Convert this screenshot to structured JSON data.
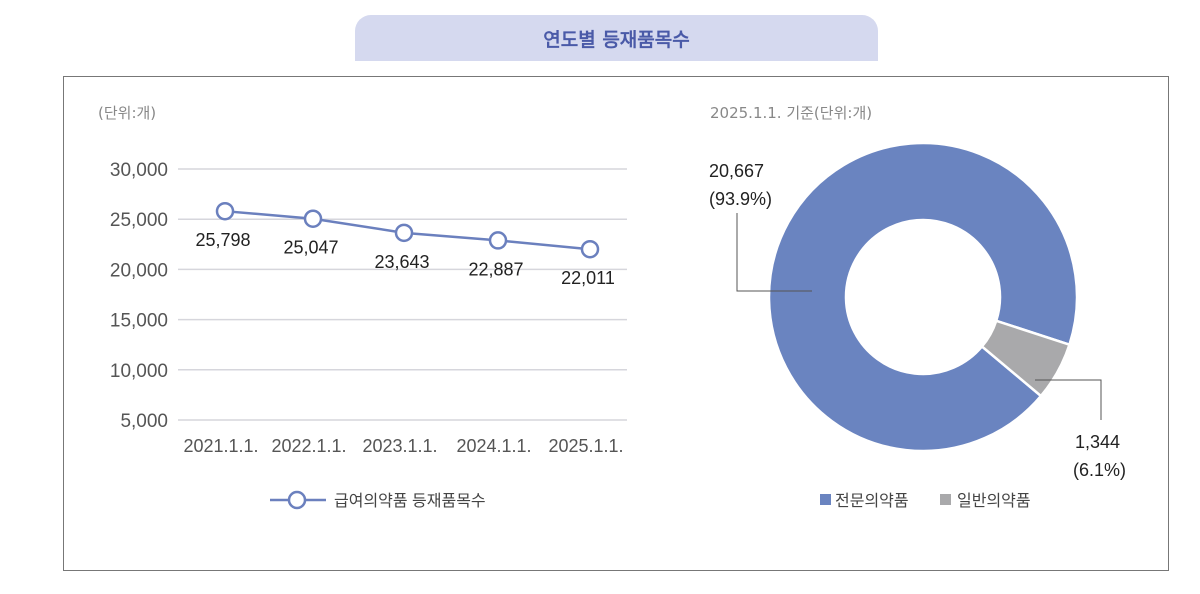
{
  "title": "연도별 등재품목수",
  "chart_data": [
    {
      "type": "line",
      "unit_label": "(단위:개)",
      "categories": [
        "2021.1.1.",
        "2022.1.1.",
        "2023.1.1.",
        "2024.1.1.",
        "2025.1.1."
      ],
      "series": [
        {
          "name": "급여의약품 등재품목수",
          "values": [
            25798,
            25047,
            23643,
            22887,
            22011
          ],
          "color": "#6b80be"
        }
      ],
      "data_labels": [
        "25,798",
        "25,047",
        "23,643",
        "22,887",
        "22,011"
      ],
      "yticks": [
        "30,000",
        "25,000",
        "20,000",
        "15,000",
        "10,000",
        "5,000"
      ],
      "ytick_values": [
        30000,
        25000,
        20000,
        15000,
        10000,
        5000
      ],
      "ylim": [
        5000,
        30000
      ],
      "grid": true,
      "legend": "bottom"
    },
    {
      "type": "pie",
      "donut": true,
      "unit_label": "2025.1.1. 기준(단위:개)",
      "slices": [
        {
          "name": "전문의약품",
          "value": 20667,
          "percent": 93.9,
          "label": "20,667",
          "percent_label": "(93.9%)",
          "color": "#6a84c0"
        },
        {
          "name": "일반의약품",
          "value": 1344,
          "percent": 6.1,
          "label": "1,344",
          "percent_label": "(6.1%)",
          "color": "#a9a9ab"
        }
      ],
      "legend": "bottom"
    }
  ]
}
